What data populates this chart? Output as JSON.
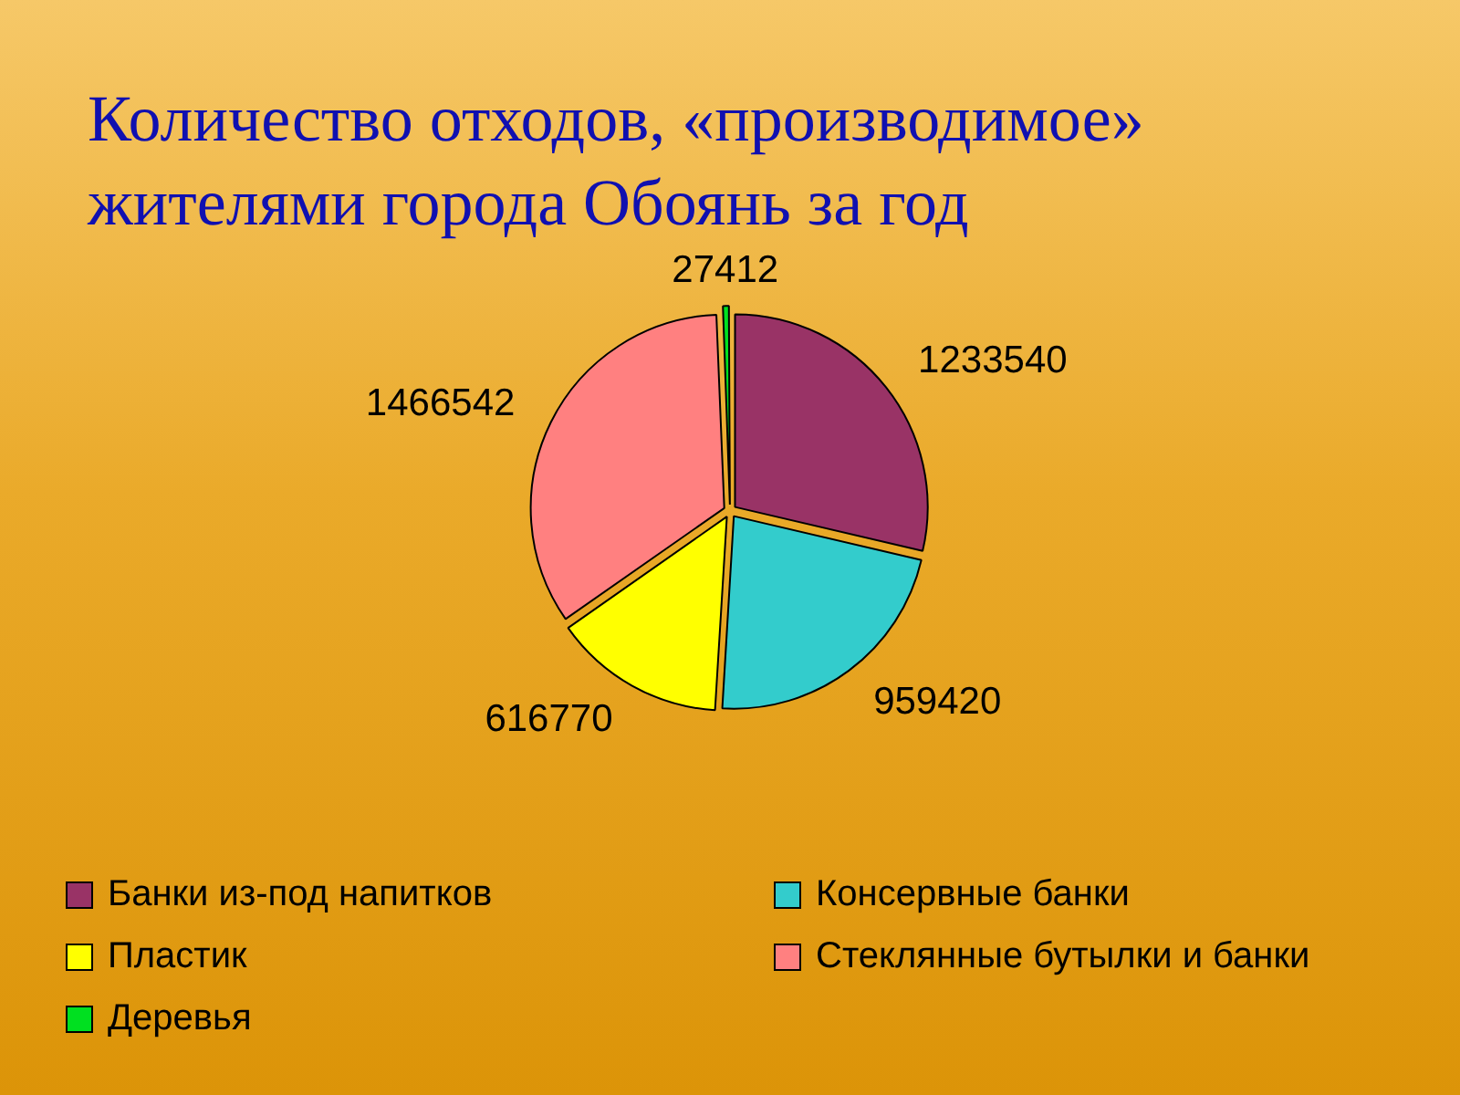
{
  "chart_data": {
    "type": "pie",
    "title": "Количество отходов, «производимое» жителями города Обоянь за год",
    "categories": [
      "Банки из-под напитков",
      "Консервные банки",
      "Пластик",
      "Стеклянные бутылки и банки",
      "Деревья"
    ],
    "values": [
      1233540,
      959420,
      616770,
      1466542,
      27412
    ],
    "colors": [
      "#993366",
      "#33cccc",
      "#ffff00",
      "#ff8080",
      "#00e020"
    ],
    "data_labels": true,
    "legend": "bottom"
  }
}
